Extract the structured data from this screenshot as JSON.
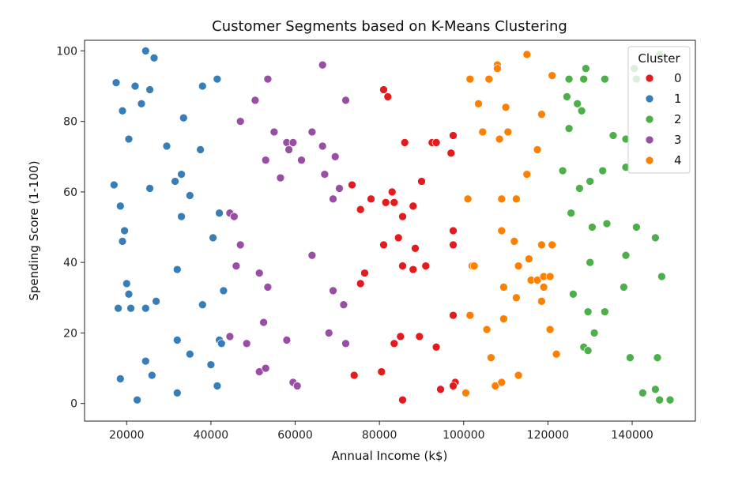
{
  "chart_data": {
    "type": "scatter",
    "title": "Customer Segments based on K-Means Clustering",
    "xlabel": "Annual Income (k$)",
    "ylabel": "Spending Score (1-100)",
    "xlim": [
      10000,
      155000
    ],
    "ylim": [
      -5,
      103
    ],
    "xticks": [
      20000,
      40000,
      60000,
      80000,
      100000,
      120000,
      140000
    ],
    "xtick_labels": [
      "20000",
      "40000",
      "60000",
      "80000",
      "100000",
      "120000",
      "140000"
    ],
    "yticks": [
      0,
      20,
      40,
      60,
      80,
      100
    ],
    "ytick_labels": [
      "0",
      "20",
      "40",
      "60",
      "80",
      "100"
    ],
    "grid": false,
    "legend": {
      "title": "Cluster",
      "placement": "top-right"
    },
    "series": [
      {
        "name": "0",
        "color": "#e41a1c",
        "points": [
          [
            81000,
            89
          ],
          [
            82000,
            87
          ],
          [
            86000,
            74
          ],
          [
            92500,
            74
          ],
          [
            93500,
            74
          ],
          [
            97000,
            71
          ],
          [
            97500,
            76
          ],
          [
            73500,
            62
          ],
          [
            90000,
            63
          ],
          [
            78000,
            58
          ],
          [
            75500,
            55
          ],
          [
            81500,
            57
          ],
          [
            83500,
            57
          ],
          [
            83000,
            60
          ],
          [
            88000,
            56
          ],
          [
            85500,
            53
          ],
          [
            97500,
            49
          ],
          [
            81000,
            45
          ],
          [
            84500,
            47
          ],
          [
            97500,
            45
          ],
          [
            88500,
            44
          ],
          [
            85500,
            39
          ],
          [
            88000,
            38
          ],
          [
            91000,
            39
          ],
          [
            76500,
            37
          ],
          [
            75500,
            34
          ],
          [
            97500,
            25
          ],
          [
            85000,
            19
          ],
          [
            83500,
            17
          ],
          [
            89500,
            19
          ],
          [
            93500,
            16
          ],
          [
            74000,
            8
          ],
          [
            80500,
            9
          ],
          [
            98000,
            6
          ],
          [
            97500,
            5
          ],
          [
            94500,
            4
          ],
          [
            85500,
            1
          ]
        ]
      },
      {
        "name": "1",
        "color": "#377eb8",
        "points": [
          [
            17500,
            91
          ],
          [
            19000,
            83
          ],
          [
            22000,
            90
          ],
          [
            23500,
            85
          ],
          [
            24500,
            100
          ],
          [
            25500,
            89
          ],
          [
            26500,
            98
          ],
          [
            20500,
            75
          ],
          [
            29500,
            73
          ],
          [
            33500,
            81
          ],
          [
            38000,
            90
          ],
          [
            41500,
            92
          ],
          [
            37500,
            72
          ],
          [
            17000,
            62
          ],
          [
            18500,
            56
          ],
          [
            25500,
            61
          ],
          [
            31500,
            63
          ],
          [
            33000,
            65
          ],
          [
            35000,
            59
          ],
          [
            19500,
            49
          ],
          [
            19000,
            46
          ],
          [
            33000,
            53
          ],
          [
            42000,
            54
          ],
          [
            40500,
            47
          ],
          [
            20000,
            34
          ],
          [
            20500,
            31
          ],
          [
            32000,
            38
          ],
          [
            18000,
            27
          ],
          [
            21000,
            27
          ],
          [
            24500,
            27
          ],
          [
            27000,
            29
          ],
          [
            38000,
            28
          ],
          [
            43000,
            32
          ],
          [
            32000,
            18
          ],
          [
            35000,
            14
          ],
          [
            40000,
            11
          ],
          [
            42000,
            18
          ],
          [
            42500,
            17
          ],
          [
            24500,
            12
          ],
          [
            26000,
            8
          ],
          [
            18500,
            7
          ],
          [
            41500,
            5
          ],
          [
            32000,
            3
          ],
          [
            22500,
            1
          ]
        ]
      },
      {
        "name": "2",
        "color": "#4daf4a",
        "points": [
          [
            146500,
            99
          ],
          [
            129000,
            95
          ],
          [
            140500,
            95
          ],
          [
            141000,
            92
          ],
          [
            125000,
            92
          ],
          [
            128500,
            92
          ],
          [
            133500,
            92
          ],
          [
            124500,
            87
          ],
          [
            127000,
            85
          ],
          [
            128000,
            83
          ],
          [
            125000,
            78
          ],
          [
            135500,
            76
          ],
          [
            138500,
            75
          ],
          [
            123500,
            66
          ],
          [
            133000,
            66
          ],
          [
            138500,
            67
          ],
          [
            130000,
            63
          ],
          [
            127500,
            61
          ],
          [
            125500,
            54
          ],
          [
            130500,
            50
          ],
          [
            134000,
            51
          ],
          [
            141000,
            50
          ],
          [
            145500,
            47
          ],
          [
            130000,
            40
          ],
          [
            138500,
            42
          ],
          [
            147000,
            36
          ],
          [
            138000,
            33
          ],
          [
            126000,
            31
          ],
          [
            129500,
            26
          ],
          [
            133500,
            26
          ],
          [
            131000,
            20
          ],
          [
            128500,
            16
          ],
          [
            129500,
            15
          ],
          [
            139500,
            13
          ],
          [
            146000,
            13
          ],
          [
            142500,
            3
          ],
          [
            145500,
            4
          ],
          [
            146500,
            1
          ],
          [
            149000,
            1
          ]
        ]
      },
      {
        "name": "3",
        "color": "#984ea3",
        "points": [
          [
            66500,
            96
          ],
          [
            53500,
            92
          ],
          [
            50500,
            86
          ],
          [
            72000,
            86
          ],
          [
            47000,
            80
          ],
          [
            55000,
            77
          ],
          [
            64000,
            77
          ],
          [
            58000,
            74
          ],
          [
            59500,
            74
          ],
          [
            58500,
            72
          ],
          [
            66500,
            73
          ],
          [
            61500,
            69
          ],
          [
            53000,
            69
          ],
          [
            69500,
            70
          ],
          [
            56500,
            64
          ],
          [
            67000,
            65
          ],
          [
            70500,
            61
          ],
          [
            69000,
            58
          ],
          [
            44500,
            54
          ],
          [
            45500,
            53
          ],
          [
            47000,
            45
          ],
          [
            64000,
            42
          ],
          [
            46000,
            39
          ],
          [
            51500,
            37
          ],
          [
            53500,
            33
          ],
          [
            69000,
            32
          ],
          [
            71500,
            28
          ],
          [
            52500,
            23
          ],
          [
            44500,
            19
          ],
          [
            48500,
            17
          ],
          [
            58000,
            18
          ],
          [
            68000,
            20
          ],
          [
            72000,
            17
          ],
          [
            51500,
            9
          ],
          [
            53000,
            10
          ],
          [
            59500,
            6
          ],
          [
            60500,
            5
          ]
        ]
      },
      {
        "name": "4",
        "color": "#ff7f00",
        "points": [
          [
            115000,
            99
          ],
          [
            108000,
            96
          ],
          [
            108000,
            95
          ],
          [
            101500,
            92
          ],
          [
            106000,
            92
          ],
          [
            121000,
            93
          ],
          [
            103500,
            85
          ],
          [
            110000,
            84
          ],
          [
            118500,
            82
          ],
          [
            104500,
            77
          ],
          [
            108500,
            75
          ],
          [
            110500,
            77
          ],
          [
            117500,
            72
          ],
          [
            115000,
            65
          ],
          [
            101000,
            58
          ],
          [
            109000,
            58
          ],
          [
            112500,
            58
          ],
          [
            109000,
            49
          ],
          [
            112000,
            46
          ],
          [
            118500,
            45
          ],
          [
            121000,
            45
          ],
          [
            115500,
            41
          ],
          [
            102000,
            39
          ],
          [
            102500,
            39
          ],
          [
            113000,
            39
          ],
          [
            116000,
            35
          ],
          [
            117500,
            35
          ],
          [
            119000,
            36
          ],
          [
            120500,
            36
          ],
          [
            109500,
            33
          ],
          [
            119000,
            33
          ],
          [
            112500,
            30
          ],
          [
            118500,
            29
          ],
          [
            101500,
            25
          ],
          [
            109500,
            24
          ],
          [
            105500,
            21
          ],
          [
            120500,
            21
          ],
          [
            122000,
            14
          ],
          [
            106500,
            13
          ],
          [
            113000,
            8
          ],
          [
            107500,
            5
          ],
          [
            109000,
            6
          ],
          [
            100500,
            3
          ]
        ]
      }
    ]
  }
}
